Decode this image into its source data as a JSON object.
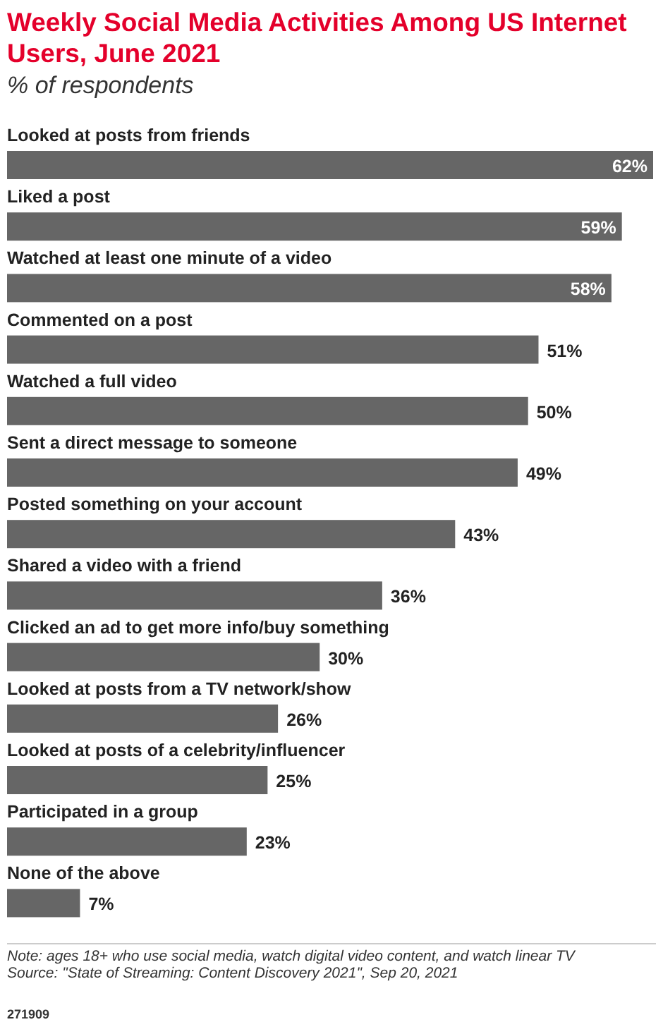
{
  "chart_data": {
    "type": "bar",
    "orientation": "horizontal",
    "title": "Weekly Social Media Activities Among US Internet Users, June 2021",
    "subtitle": "% of respondents",
    "categories": [
      "Looked at posts from friends",
      "Liked a post",
      "Watched at least one minute of a video",
      "Commented on a post",
      "Watched a full video",
      "Sent a direct message to someone",
      "Posted something on your account",
      "Shared a video with a friend",
      "Clicked an ad to get more info/buy something",
      "Looked at posts from a TV network/show",
      "Looked at posts of a celebrity/influencer",
      "Participated in a group",
      "None of the above"
    ],
    "values": [
      62,
      59,
      58,
      51,
      50,
      49,
      43,
      36,
      30,
      26,
      25,
      23,
      7
    ],
    "value_labels": [
      "62%",
      "59%",
      "58%",
      "51%",
      "50%",
      "49%",
      "43%",
      "36%",
      "30%",
      "26%",
      "25%",
      "23%",
      "7%"
    ],
    "color": "#666666",
    "annotations": [
      "Note: ages 18+ who use social media, watch digital video content, and watch linear TV",
      "Source: \"State of Streaming: Content Discovery 2021\", Sep 20, 2021",
      "271909"
    ]
  }
}
